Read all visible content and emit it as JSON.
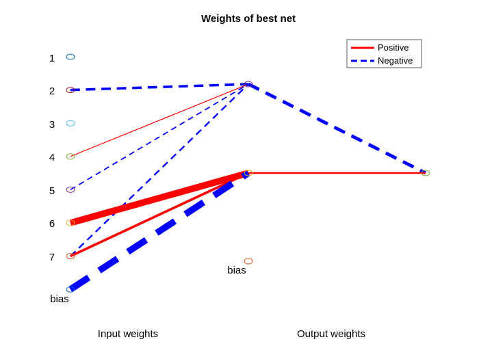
{
  "title": "Weights of best net",
  "input_labels": [
    "1",
    "2",
    "3",
    "4",
    "5",
    "6",
    "7",
    "bias"
  ],
  "hidden_bias_label": "bias",
  "column_labels": {
    "input": "Input weights",
    "output": "Output weights"
  },
  "legend": {
    "positive": {
      "label": "Positive",
      "color": "#ff0000",
      "style": "solid"
    },
    "negative": {
      "label": "Negative",
      "color": "#0000ff",
      "style": "dashed"
    }
  },
  "node_colors": {
    "input": [
      "#0072bd",
      "#a2142f",
      "#4dbeee",
      "#77ac30",
      "#7e2f8e",
      "#edb120",
      "#d95319",
      "#0072bd"
    ],
    "hidden": [
      "#7e2f8e",
      "#edb120"
    ],
    "hidden_bias": "#d95319",
    "output": "#77ac30"
  },
  "chart_data": {
    "type": "network-weights",
    "layers": {
      "input": [
        "1",
        "2",
        "3",
        "4",
        "5",
        "6",
        "7",
        "bias"
      ],
      "hidden": [
        "h1",
        "h2",
        "bias"
      ],
      "output": [
        "out"
      ]
    },
    "connections": [
      {
        "from": "2",
        "to": "h1",
        "sign": "negative",
        "weight": -3.0
      },
      {
        "from": "4",
        "to": "h1",
        "sign": "positive",
        "weight": 1.0
      },
      {
        "from": "5",
        "to": "h1",
        "sign": "negative",
        "weight": -1.5
      },
      {
        "from": "7",
        "to": "h1",
        "sign": "negative",
        "weight": -2.0
      },
      {
        "from": "6",
        "to": "h2",
        "sign": "positive",
        "weight": 8.0
      },
      {
        "from": "7",
        "to": "h2",
        "sign": "positive",
        "weight": 3.0
      },
      {
        "from": "bias",
        "to": "h2",
        "sign": "negative",
        "weight": -8.0
      },
      {
        "from": "h1",
        "to": "out",
        "sign": "negative",
        "weight": -4.0
      },
      {
        "from": "h2",
        "to": "out",
        "sign": "positive",
        "weight": 2.0
      }
    ]
  }
}
